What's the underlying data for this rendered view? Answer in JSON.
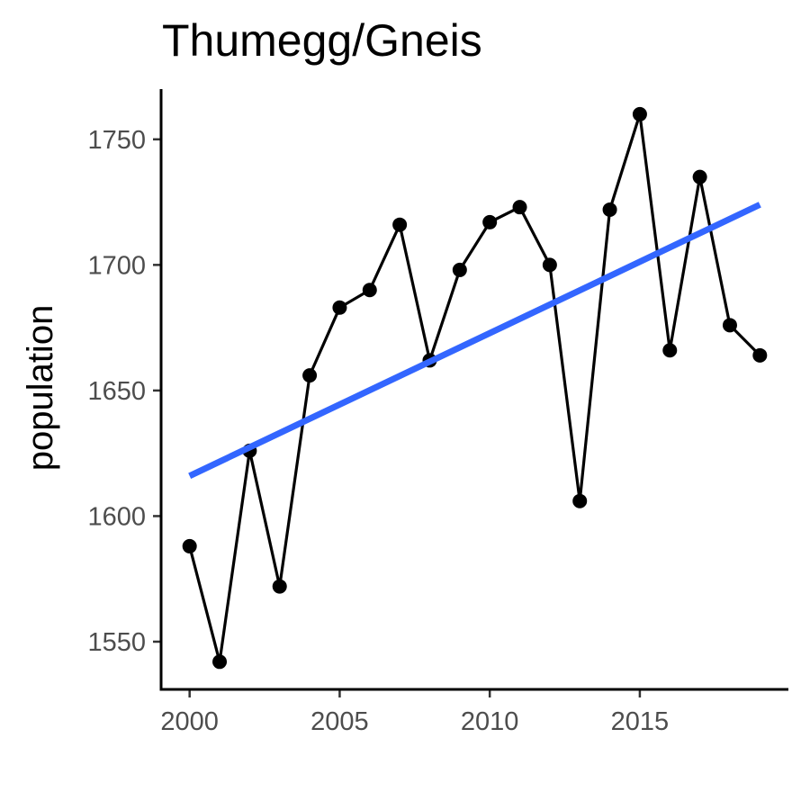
{
  "chart_data": {
    "type": "line",
    "title": "Thumegg/Gneis",
    "xlabel": "",
    "ylabel": "population",
    "xlim": [
      1999.05,
      2019.95
    ],
    "ylim": [
      1531,
      1770
    ],
    "x_ticks": [
      2000,
      2005,
      2010,
      2015
    ],
    "x_tick_labels": [
      "2000",
      "2005",
      "2010",
      "2015"
    ],
    "y_ticks": [
      1550,
      1600,
      1650,
      1700,
      1750
    ],
    "y_tick_labels": [
      "1550",
      "1600",
      "1650",
      "1700",
      "1750"
    ],
    "grid": false,
    "legend": "none",
    "series": [
      {
        "color": "#000000",
        "x": [
          2000,
          2001,
          2002,
          2003,
          2004,
          2005,
          2006,
          2007,
          2008,
          2009,
          2010,
          2011,
          2012,
          2013,
          2014,
          2015,
          2016,
          2017,
          2018,
          2019
        ],
        "values": [
          1588,
          1542,
          1626,
          1572,
          1656,
          1683,
          1690,
          1716,
          1662,
          1698,
          1717,
          1723,
          1700,
          1606,
          1722,
          1760,
          1666,
          1735,
          1676,
          1664
        ]
      }
    ],
    "trend_line": {
      "color": "#3366FF",
      "x": [
        2000,
        2019
      ],
      "values": [
        1616,
        1724
      ]
    }
  }
}
